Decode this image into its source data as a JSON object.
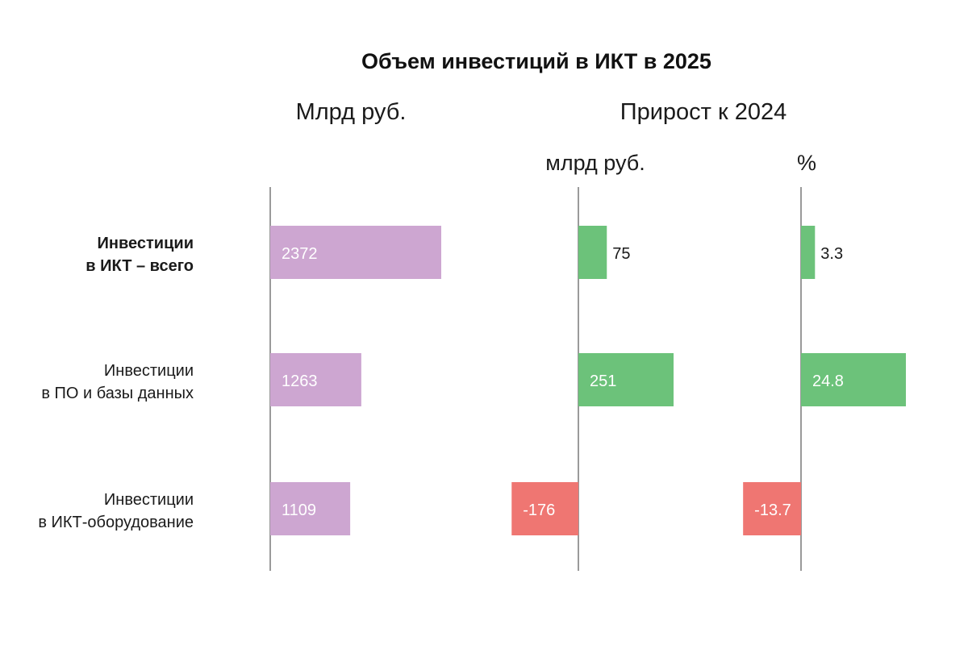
{
  "chart_data": {
    "type": "bar",
    "orientation": "horizontal",
    "title": "Объем инвестиций в ИКТ в 2025",
    "categories": [
      {
        "lines": [
          "Инвестиции",
          "в ИКТ – всего"
        ],
        "bold": true
      },
      {
        "lines": [
          "Инвестиции",
          "в ПО и базы данных"
        ],
        "bold": false
      },
      {
        "lines": [
          "Инвестиции",
          "в ИКТ-оборудование"
        ],
        "bold": false
      }
    ],
    "group_header": "Прирост к 2024",
    "panels": [
      {
        "header": "Млрд руб.",
        "values": [
          2372,
          1263,
          1109
        ],
        "labels": [
          "2372",
          "1263",
          "1109"
        ],
        "xlim": [
          0,
          2372
        ]
      },
      {
        "header": "млрд руб.",
        "values": [
          75,
          251,
          -176
        ],
        "labels": [
          "75",
          "251",
          "-176"
        ],
        "xlim": [
          -176,
          251
        ]
      },
      {
        "header": "%",
        "values": [
          3.3,
          24.8,
          -13.7
        ],
        "labels": [
          "3.3",
          "24.8",
          "-13.7"
        ],
        "xlim": [
          -13.7,
          24.8
        ]
      }
    ],
    "colors": {
      "level": "#cda6d1",
      "positive": "#6cc27a",
      "negative": "#ef7672",
      "axis": "#9a9a9a"
    }
  }
}
